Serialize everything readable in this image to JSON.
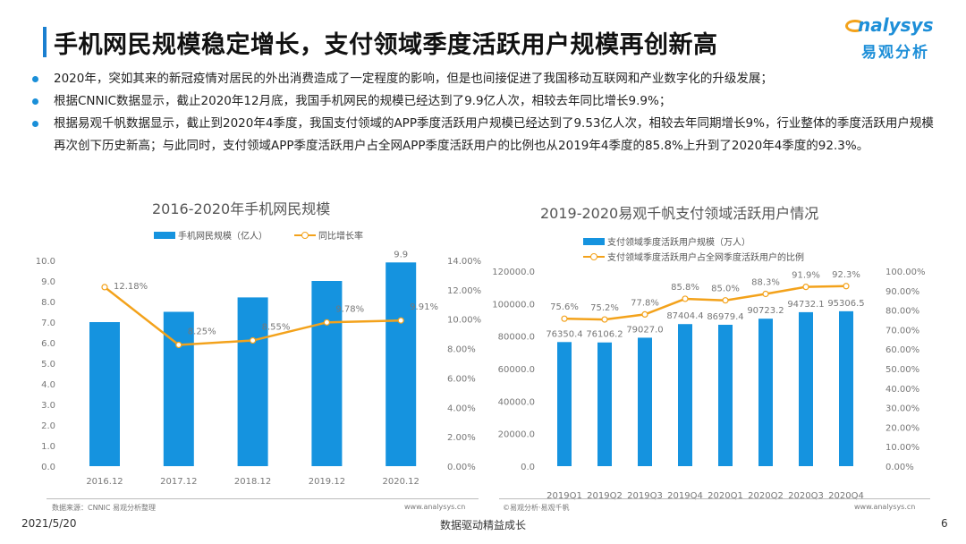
{
  "title": "手机网民规模稳定增长，支付领域季度活跃用户规模再创新高",
  "logo": {
    "en": "nalysys",
    "cn": "易观分析"
  },
  "bullets": [
    "2020年，突如其来的新冠疫情对居民的外出消费造成了一定程度的影响，但是也间接促进了我国移动互联网和产业数字化的升级发展；",
    "根据CNNIC数据显示，截止2020年12月底，我国手机网民的规模已经达到了9.9亿人次，相较去年同比增长9.9%；",
    "根据易观千帆数据显示，截止到2020年4季度，我国支付领域的APP季度活跃用户规模已经达到了9.53亿人次，相较去年同期增长9%，行业整体的季度活跃用户规模再次创下历史新高；与此同时，支付领域APP季度活跃用户占全网APP季度活跃用户的比例也从2019年4季度的85.8%上升到了2020年4季度的92.3%。"
  ],
  "chart_data": [
    {
      "type": "bar+line",
      "title": "2016-2020年手机网民规模",
      "categories": [
        "2016.12",
        "2017.12",
        "2018.12",
        "2019.12",
        "2020.12"
      ],
      "series": [
        {
          "name": "手机网民规模（亿人）",
          "type": "bar",
          "axis": "left",
          "values": [
            7.0,
            7.5,
            8.2,
            9.0,
            9.9
          ],
          "labels": [
            "7.0",
            "7.5",
            "8.2",
            "9.0",
            "9.9"
          ]
        },
        {
          "name": "同比增长率",
          "type": "line",
          "axis": "right",
          "values": [
            12.18,
            8.25,
            8.55,
            9.78,
            9.91
          ],
          "labels": [
            "12.18%",
            "8.25%",
            "8.55%",
            "9.78%",
            "9.91%"
          ]
        }
      ],
      "ylim": [
        0,
        10
      ],
      "yticks": [
        "0.0",
        "1.0",
        "2.0",
        "3.0",
        "4.0",
        "5.0",
        "6.0",
        "7.0",
        "8.0",
        "9.0",
        "10.0"
      ],
      "y2lim": [
        0,
        14
      ],
      "y2ticks": [
        "0.00%",
        "2.00%",
        "4.00%",
        "6.00%",
        "8.00%",
        "10.00%",
        "12.00%",
        "14.00%"
      ],
      "source": "数据来源：CNNIC 易观分析整理",
      "site": "www.analysys.cn"
    },
    {
      "type": "bar+line",
      "title": "2019-2020易观千帆支付领域活跃用户情况",
      "categories": [
        "2019Q1",
        "2019Q2",
        "2019Q3",
        "2019Q4",
        "2020Q1",
        "2020Q2",
        "2020Q3",
        "2020Q4"
      ],
      "series": [
        {
          "name": "支付领域季度活跃用户规模（万人）",
          "type": "bar",
          "axis": "left",
          "values": [
            76350.4,
            76106.2,
            79027.0,
            87404.4,
            86979.4,
            90723.2,
            94732.1,
            95306.5
          ],
          "labels": [
            "76350.4",
            "76106.2",
            "79027.0",
            "87404.4",
            "86979.4",
            "90723.2",
            "94732.1",
            "95306.5"
          ]
        },
        {
          "name": "支付领域季度活跃用户占全网季度活跃用户的比例",
          "type": "line",
          "axis": "right",
          "values": [
            75.6,
            75.2,
            77.8,
            85.8,
            85.0,
            88.3,
            91.9,
            92.3
          ],
          "labels": [
            "75.6%",
            "75.2%",
            "77.8%",
            "85.8%",
            "85.0%",
            "88.3%",
            "91.9%",
            "92.3%"
          ]
        }
      ],
      "ylim": [
        0,
        120000
      ],
      "yticks": [
        "0.0",
        "20000.0",
        "40000.0",
        "60000.0",
        "80000.0",
        "100000.0",
        "120000.0"
      ],
      "y2lim": [
        0,
        100
      ],
      "y2ticks": [
        "0.00%",
        "10.00%",
        "20.00%",
        "30.00%",
        "40.00%",
        "50.00%",
        "60.00%",
        "70.00%",
        "80.00%",
        "90.00%",
        "100.00%"
      ],
      "source": "©易观分析·易观千帆",
      "site": "www.analysys.cn"
    }
  ],
  "colors": {
    "bar": "#1593df",
    "line": "#f3a21b",
    "accent": "#1a7fd0"
  },
  "footer": {
    "date": "2021/5/20",
    "slogan": "数据驱动精益成长",
    "page": "6"
  }
}
